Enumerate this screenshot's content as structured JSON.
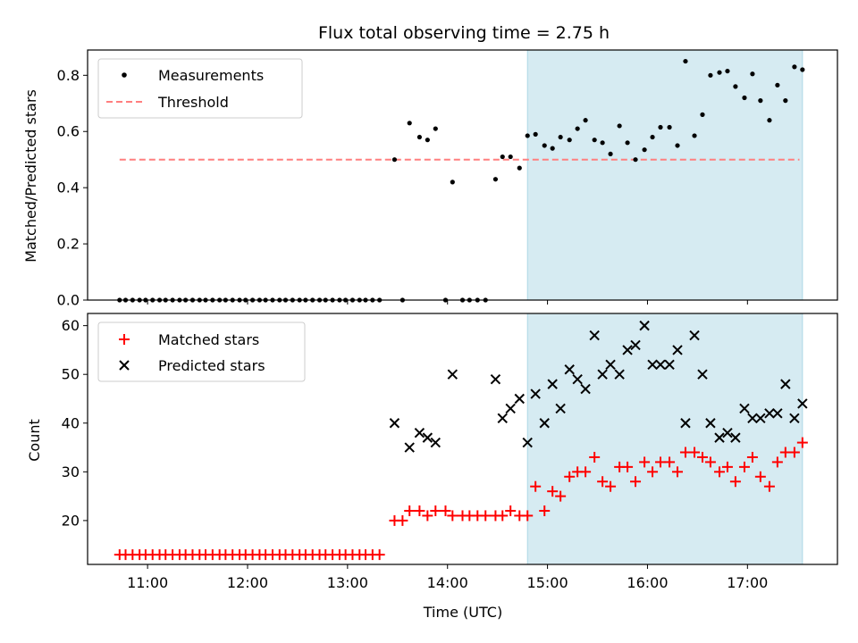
{
  "title": "Flux total observing time = 2.75 h",
  "colors": {
    "shade": "#add8e6",
    "threshold": "#ff7f7f",
    "matched": "#ff0000",
    "predicted": "#000000",
    "measurement": "#000000"
  },
  "chart_data": [
    {
      "type": "scatter",
      "ylabel": "Matched/Predicted stars",
      "xlabel": "",
      "xlim": [
        10.4,
        17.9
      ],
      "ylim": [
        0,
        0.89
      ],
      "yticks": [
        0.0,
        0.2,
        0.4,
        0.6,
        0.8
      ],
      "ytick_labels": [
        "0.0",
        "0.2",
        "0.4",
        "0.6",
        "0.8"
      ],
      "xticks": [
        11,
        12,
        13,
        14,
        15,
        16,
        17
      ],
      "xtick_labels": [],
      "legend_position": "top-left",
      "shaded_region": [
        14.8,
        17.55
      ],
      "threshold": {
        "name": "Threshold",
        "value": 0.5,
        "x_range": [
          10.72,
          17.52
        ]
      },
      "series": [
        {
          "name": "Measurements",
          "points": [
            [
              10.72,
              0
            ],
            [
              10.78,
              0
            ],
            [
              10.85,
              0
            ],
            [
              10.92,
              0
            ],
            [
              10.98,
              0
            ],
            [
              11.05,
              0
            ],
            [
              11.12,
              0
            ],
            [
              11.18,
              0
            ],
            [
              11.25,
              0
            ],
            [
              11.32,
              0
            ],
            [
              11.38,
              0
            ],
            [
              11.45,
              0
            ],
            [
              11.52,
              0
            ],
            [
              11.58,
              0
            ],
            [
              11.65,
              0
            ],
            [
              11.72,
              0
            ],
            [
              11.78,
              0
            ],
            [
              11.85,
              0
            ],
            [
              11.92,
              0
            ],
            [
              11.98,
              0
            ],
            [
              12.05,
              0
            ],
            [
              12.12,
              0
            ],
            [
              12.18,
              0
            ],
            [
              12.25,
              0
            ],
            [
              12.32,
              0
            ],
            [
              12.38,
              0
            ],
            [
              12.45,
              0
            ],
            [
              12.52,
              0
            ],
            [
              12.58,
              0
            ],
            [
              12.65,
              0
            ],
            [
              12.72,
              0
            ],
            [
              12.78,
              0
            ],
            [
              12.85,
              0
            ],
            [
              12.92,
              0
            ],
            [
              12.98,
              0
            ],
            [
              13.05,
              0
            ],
            [
              13.12,
              0
            ],
            [
              13.18,
              0
            ],
            [
              13.25,
              0
            ],
            [
              13.32,
              0
            ],
            [
              13.47,
              0.5
            ],
            [
              13.55,
              0
            ],
            [
              13.62,
              0.63
            ],
            [
              13.72,
              0.58
            ],
            [
              13.8,
              0.57
            ],
            [
              13.88,
              0.61
            ],
            [
              13.98,
              0
            ],
            [
              14.05,
              0.42
            ],
            [
              14.15,
              0
            ],
            [
              14.22,
              0
            ],
            [
              14.3,
              0
            ],
            [
              14.38,
              0
            ],
            [
              14.48,
              0.43
            ],
            [
              14.55,
              0.51
            ],
            [
              14.63,
              0.51
            ],
            [
              14.72,
              0.47
            ],
            [
              14.8,
              0.585
            ],
            [
              14.88,
              0.59
            ],
            [
              14.97,
              0.55
            ],
            [
              15.05,
              0.54
            ],
            [
              15.13,
              0.58
            ],
            [
              15.22,
              0.57
            ],
            [
              15.3,
              0.61
            ],
            [
              15.38,
              0.64
            ],
            [
              15.47,
              0.57
            ],
            [
              15.55,
              0.56
            ],
            [
              15.63,
              0.52
            ],
            [
              15.72,
              0.62
            ],
            [
              15.8,
              0.56
            ],
            [
              15.88,
              0.5
            ],
            [
              15.97,
              0.535
            ],
            [
              16.05,
              0.58
            ],
            [
              16.13,
              0.615
            ],
            [
              16.22,
              0.615
            ],
            [
              16.3,
              0.55
            ],
            [
              16.38,
              0.85
            ],
            [
              16.47,
              0.585
            ],
            [
              16.55,
              0.66
            ],
            [
              16.63,
              0.8
            ],
            [
              16.72,
              0.81
            ],
            [
              16.8,
              0.815
            ],
            [
              16.88,
              0.76
            ],
            [
              16.97,
              0.72
            ],
            [
              17.05,
              0.805
            ],
            [
              17.13,
              0.71
            ],
            [
              17.22,
              0.64
            ],
            [
              17.3,
              0.765
            ],
            [
              17.38,
              0.71
            ],
            [
              17.47,
              0.83
            ],
            [
              17.55,
              0.82
            ]
          ]
        }
      ]
    },
    {
      "type": "scatter",
      "ylabel": "Count",
      "xlabel": "Time (UTC)",
      "xlim": [
        10.4,
        17.9
      ],
      "ylim": [
        11,
        62.5
      ],
      "yticks": [
        20,
        30,
        40,
        50,
        60
      ],
      "ytick_labels": [
        "20",
        "30",
        "40",
        "50",
        "60"
      ],
      "xticks": [
        11,
        12,
        13,
        14,
        15,
        16,
        17
      ],
      "xtick_labels": [
        "11:00",
        "12:00",
        "13:00",
        "14:00",
        "15:00",
        "16:00",
        "17:00"
      ],
      "legend_position": "top-left",
      "shaded_region": [
        14.8,
        17.55
      ],
      "series": [
        {
          "name": "Matched stars",
          "points": [
            [
              10.72,
              13
            ],
            [
              10.78,
              13
            ],
            [
              10.85,
              13
            ],
            [
              10.92,
              13
            ],
            [
              10.98,
              13
            ],
            [
              11.05,
              13
            ],
            [
              11.12,
              13
            ],
            [
              11.18,
              13
            ],
            [
              11.25,
              13
            ],
            [
              11.32,
              13
            ],
            [
              11.38,
              13
            ],
            [
              11.45,
              13
            ],
            [
              11.52,
              13
            ],
            [
              11.58,
              13
            ],
            [
              11.65,
              13
            ],
            [
              11.72,
              13
            ],
            [
              11.78,
              13
            ],
            [
              11.85,
              13
            ],
            [
              11.92,
              13
            ],
            [
              11.98,
              13
            ],
            [
              12.05,
              13
            ],
            [
              12.12,
              13
            ],
            [
              12.18,
              13
            ],
            [
              12.25,
              13
            ],
            [
              12.32,
              13
            ],
            [
              12.38,
              13
            ],
            [
              12.45,
              13
            ],
            [
              12.52,
              13
            ],
            [
              12.58,
              13
            ],
            [
              12.65,
              13
            ],
            [
              12.72,
              13
            ],
            [
              12.78,
              13
            ],
            [
              12.85,
              13
            ],
            [
              12.92,
              13
            ],
            [
              12.98,
              13
            ],
            [
              13.05,
              13
            ],
            [
              13.12,
              13
            ],
            [
              13.18,
              13
            ],
            [
              13.25,
              13
            ],
            [
              13.32,
              13
            ],
            [
              13.47,
              20
            ],
            [
              13.55,
              20
            ],
            [
              13.62,
              22
            ],
            [
              13.72,
              22
            ],
            [
              13.8,
              21
            ],
            [
              13.88,
              22
            ],
            [
              13.98,
              22
            ],
            [
              14.05,
              21
            ],
            [
              14.15,
              21
            ],
            [
              14.22,
              21
            ],
            [
              14.3,
              21
            ],
            [
              14.38,
              21
            ],
            [
              14.48,
              21
            ],
            [
              14.55,
              21
            ],
            [
              14.63,
              22
            ],
            [
              14.72,
              21
            ],
            [
              14.8,
              21
            ],
            [
              14.88,
              27
            ],
            [
              14.97,
              22
            ],
            [
              15.05,
              26
            ],
            [
              15.13,
              25
            ],
            [
              15.22,
              29
            ],
            [
              15.3,
              30
            ],
            [
              15.38,
              30
            ],
            [
              15.47,
              33
            ],
            [
              15.55,
              28
            ],
            [
              15.63,
              27
            ],
            [
              15.72,
              31
            ],
            [
              15.8,
              31
            ],
            [
              15.88,
              28
            ],
            [
              15.97,
              32
            ],
            [
              16.05,
              30
            ],
            [
              16.13,
              32
            ],
            [
              16.22,
              32
            ],
            [
              16.3,
              30
            ],
            [
              16.38,
              34
            ],
            [
              16.47,
              34
            ],
            [
              16.55,
              33
            ],
            [
              16.63,
              32
            ],
            [
              16.72,
              30
            ],
            [
              16.8,
              31
            ],
            [
              16.88,
              28
            ],
            [
              16.97,
              31
            ],
            [
              17.05,
              33
            ],
            [
              17.13,
              29
            ],
            [
              17.22,
              27
            ],
            [
              17.3,
              32
            ],
            [
              17.38,
              34
            ],
            [
              17.47,
              34
            ],
            [
              17.55,
              36
            ]
          ]
        },
        {
          "name": "Predicted stars",
          "points": [
            [
              13.47,
              40
            ],
            [
              13.62,
              35
            ],
            [
              13.72,
              38
            ],
            [
              13.8,
              37
            ],
            [
              13.88,
              36
            ],
            [
              14.05,
              50
            ],
            [
              14.48,
              49
            ],
            [
              14.55,
              41
            ],
            [
              14.63,
              43
            ],
            [
              14.72,
              45
            ],
            [
              14.8,
              36
            ],
            [
              14.88,
              46
            ],
            [
              14.97,
              40
            ],
            [
              15.05,
              48
            ],
            [
              15.13,
              43
            ],
            [
              15.22,
              51
            ],
            [
              15.3,
              49
            ],
            [
              15.38,
              47
            ],
            [
              15.47,
              58
            ],
            [
              15.55,
              50
            ],
            [
              15.63,
              52
            ],
            [
              15.72,
              50
            ],
            [
              15.8,
              55
            ],
            [
              15.88,
              56
            ],
            [
              15.97,
              60
            ],
            [
              16.05,
              52
            ],
            [
              16.13,
              52
            ],
            [
              16.22,
              52
            ],
            [
              16.3,
              55
            ],
            [
              16.38,
              40
            ],
            [
              16.47,
              58
            ],
            [
              16.55,
              50
            ],
            [
              16.63,
              40
            ],
            [
              16.72,
              37
            ],
            [
              16.8,
              38
            ],
            [
              16.88,
              37
            ],
            [
              16.97,
              43
            ],
            [
              17.05,
              41
            ],
            [
              17.13,
              41
            ],
            [
              17.22,
              42
            ],
            [
              17.3,
              42
            ],
            [
              17.38,
              48
            ],
            [
              17.47,
              41
            ],
            [
              17.55,
              44
            ]
          ]
        }
      ]
    }
  ]
}
